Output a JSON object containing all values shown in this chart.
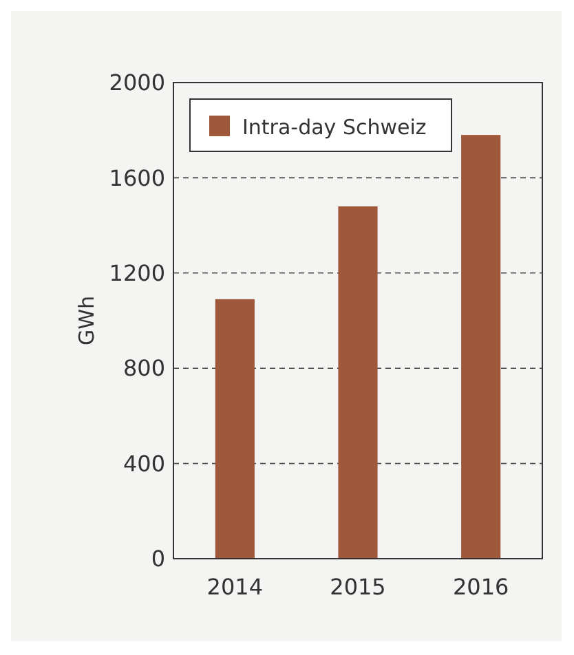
{
  "chart_data": {
    "type": "bar",
    "ylabel": "GWh",
    "categories": [
      "2014",
      "2015",
      "2016"
    ],
    "series": [
      {
        "name": "Intra-day Schweiz",
        "color": "#a0583a",
        "values": [
          1090,
          1480,
          1780
        ]
      }
    ],
    "ylim": [
      0,
      2000
    ],
    "yticks": [
      0,
      400,
      800,
      1200,
      1600,
      2000
    ],
    "grid": "y",
    "legend": "top left"
  }
}
